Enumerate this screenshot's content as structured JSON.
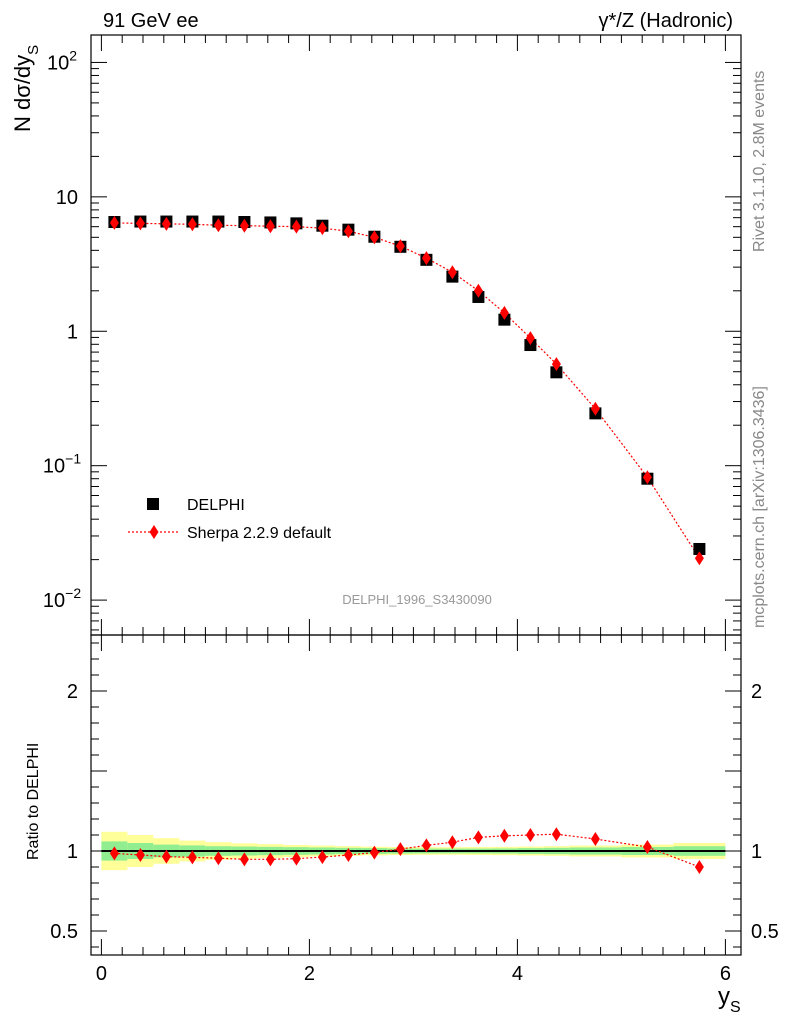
{
  "header": {
    "left_title": "91 GeV ee",
    "right_title": "γ*/Z (Hadronic)"
  },
  "side_labels": {
    "rivet": "Rivet 3.1.10,  2.8M events",
    "mcplots": "mcplots.cern.ch [arXiv:1306.3436]"
  },
  "analysis_ref": "DELPHI_1996_S3430090",
  "colors": {
    "data": "#000000",
    "mc": "#ff0000",
    "band_inner": "#90ee90",
    "band_outer": "#ffff99",
    "ref_text": "#999999",
    "side_text": "#888888"
  },
  "chart_data": [
    {
      "type": "scatter",
      "panel": "main",
      "title": "",
      "ylabel": "N dσ/dy",
      "ylabel_sub": "S",
      "yscale": "log",
      "xlim": [
        -0.1,
        6.15
      ],
      "ylim": [
        0.0055,
        160
      ],
      "y_ticks": [
        {
          "value": 0.01,
          "base": "10",
          "exp": "−2"
        },
        {
          "value": 0.1,
          "base": "10",
          "exp": "−1"
        },
        {
          "value": 1,
          "base": "1",
          "exp": ""
        },
        {
          "value": 10,
          "base": "10",
          "exp": ""
        },
        {
          "value": 100,
          "base": "10",
          "exp": "2"
        }
      ],
      "legend_position": "bottom-left",
      "series": [
        {
          "name": "DELPHI",
          "marker": "square",
          "color": "#000000",
          "x": [
            0.125,
            0.375,
            0.625,
            0.875,
            1.125,
            1.375,
            1.625,
            1.875,
            2.125,
            2.375,
            2.625,
            2.875,
            3.125,
            3.375,
            3.625,
            3.875,
            4.125,
            4.375,
            4.75,
            5.25,
            5.75
          ],
          "values": [
            6.5,
            6.55,
            6.55,
            6.55,
            6.55,
            6.5,
            6.45,
            6.35,
            6.1,
            5.7,
            5.05,
            4.25,
            3.4,
            2.55,
            1.8,
            1.22,
            0.79,
            0.495,
            0.245,
            0.08,
            0.024
          ]
        },
        {
          "name": "Sherpa 2.2.9 default",
          "marker": "diamond",
          "line": "dotted",
          "color": "#ff0000",
          "x": [
            0.125,
            0.375,
            0.625,
            0.875,
            1.125,
            1.375,
            1.625,
            1.875,
            2.125,
            2.375,
            2.625,
            2.875,
            3.125,
            3.375,
            3.625,
            3.875,
            4.125,
            4.375,
            4.75,
            5.25,
            5.75
          ],
          "values": [
            6.4,
            6.35,
            6.3,
            6.25,
            6.15,
            6.1,
            6.05,
            6.0,
            5.85,
            5.55,
            5.0,
            4.3,
            3.5,
            2.75,
            2.0,
            1.37,
            0.89,
            0.57,
            0.265,
            0.082,
            0.0205
          ]
        }
      ]
    },
    {
      "type": "scatter",
      "panel": "ratio",
      "title": "",
      "xlabel": "y",
      "xlabel_sub": "S",
      "ylabel": "Ratio to DELPHI",
      "xlim": [
        -0.1,
        6.15
      ],
      "ylim": [
        0.35,
        2.35
      ],
      "x_ticks": [
        "0",
        "2",
        "4",
        "6"
      ],
      "x_tick_values": [
        0,
        2,
        4,
        6
      ],
      "y_ticks": [
        "0.5",
        "1",
        "2"
      ],
      "y_tick_values": [
        0.5,
        1,
        2
      ],
      "bins": [
        0,
        0.25,
        0.5,
        0.75,
        1.0,
        1.25,
        1.5,
        1.75,
        2.0,
        2.25,
        2.5,
        2.75,
        3.0,
        3.25,
        3.5,
        3.75,
        4.0,
        4.25,
        4.5,
        5.0,
        5.5,
        6.0
      ],
      "band_inner_halfwidth": [
        0.06,
        0.05,
        0.04,
        0.035,
        0.03,
        0.028,
        0.026,
        0.024,
        0.022,
        0.02,
        0.018,
        0.016,
        0.015,
        0.015,
        0.015,
        0.016,
        0.018,
        0.02,
        0.022,
        0.025,
        0.03
      ],
      "band_outer_halfwidth": [
        0.12,
        0.1,
        0.08,
        0.065,
        0.055,
        0.048,
        0.043,
        0.038,
        0.034,
        0.03,
        0.027,
        0.025,
        0.024,
        0.024,
        0.025,
        0.026,
        0.028,
        0.03,
        0.034,
        0.04,
        0.05
      ],
      "series": [
        {
          "name": "Sherpa 2.2.9 default",
          "marker": "diamond",
          "line": "dotted",
          "color": "#ff0000",
          "x": [
            0.125,
            0.375,
            0.625,
            0.875,
            1.125,
            1.375,
            1.625,
            1.875,
            2.125,
            2.375,
            2.625,
            2.875,
            3.125,
            3.375,
            3.625,
            3.875,
            4.125,
            4.375,
            4.75,
            5.25,
            5.75
          ],
          "values": [
            0.985,
            0.975,
            0.965,
            0.96,
            0.955,
            0.948,
            0.948,
            0.952,
            0.962,
            0.975,
            0.99,
            1.012,
            1.035,
            1.055,
            1.085,
            1.095,
            1.1,
            1.105,
            1.075,
            1.025,
            0.9
          ]
        }
      ]
    }
  ]
}
